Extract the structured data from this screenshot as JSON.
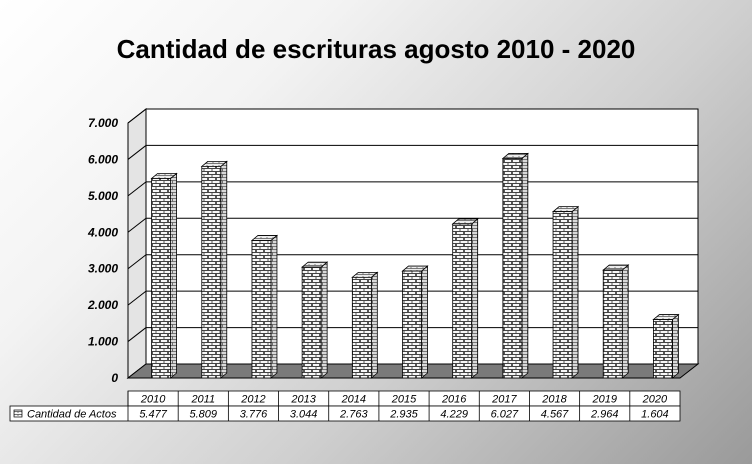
{
  "chart_data": {
    "type": "bar",
    "title": "Cantidad de escrituras agosto 2010 - 2020",
    "categories": [
      "2010",
      "2011",
      "2012",
      "2013",
      "2014",
      "2015",
      "2016",
      "2017",
      "2018",
      "2019",
      "2020"
    ],
    "series": [
      {
        "name": "Cantidad de Actos",
        "values": [
          5477,
          5809,
          3776,
          3044,
          2763,
          2935,
          4229,
          6027,
          4567,
          2964,
          1604
        ],
        "labels": [
          "5.477",
          "5.809",
          "3.776",
          "3.044",
          "2.763",
          "2.935",
          "4.229",
          "6.027",
          "4.567",
          "2.964",
          "1.604"
        ]
      }
    ],
    "ylim": [
      0,
      7000
    ],
    "yticks": [
      0,
      1000,
      2000,
      3000,
      4000,
      5000,
      6000,
      7000
    ],
    "ytick_labels": [
      "0",
      "1.000",
      "2.000",
      "3.000",
      "4.000",
      "5.000",
      "6.000",
      "7.000"
    ],
    "grid": true,
    "legend": "data-table",
    "xlabel": "",
    "ylabel": ""
  }
}
